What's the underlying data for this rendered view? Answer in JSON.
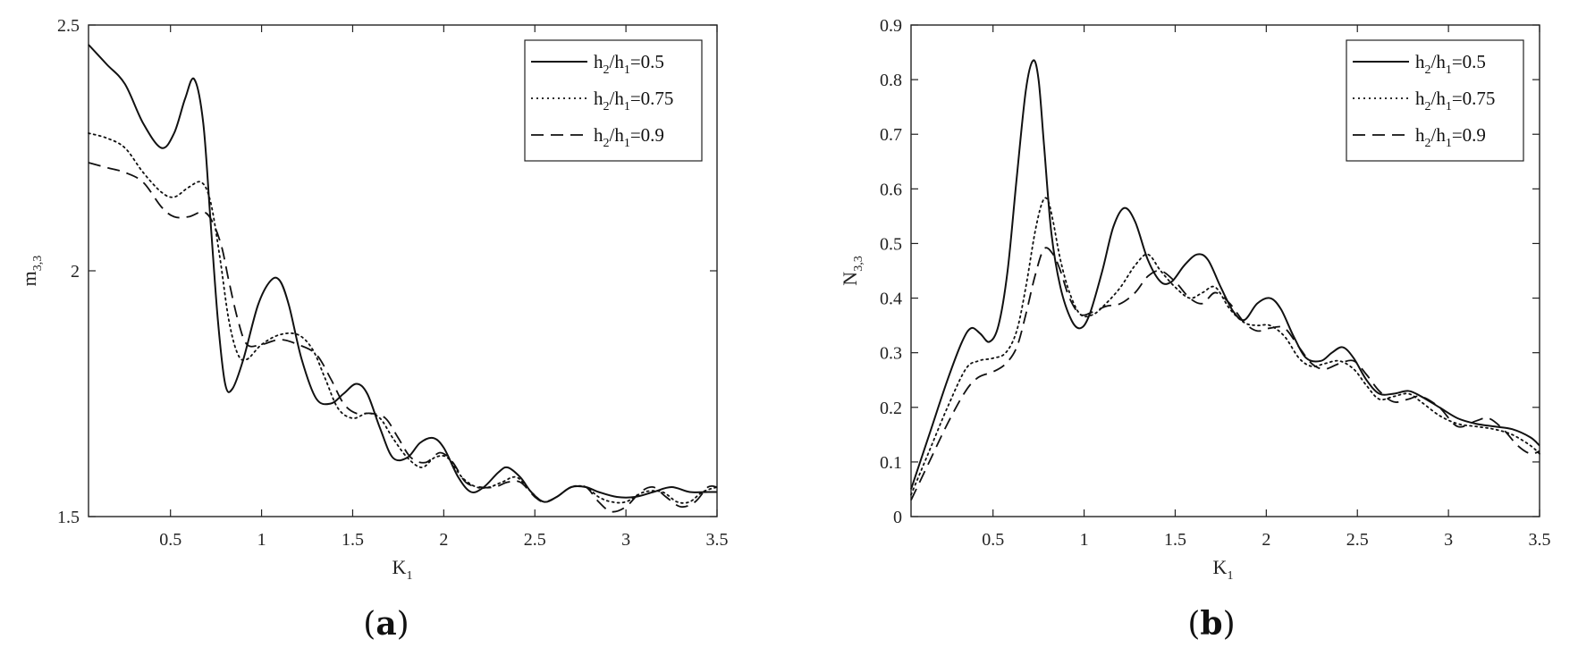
{
  "chart_data": [
    {
      "type": "line",
      "panel_label": "a",
      "ylabel": "m",
      "ylabel_sub": "3,3",
      "xlabel": "K",
      "xlabel_sub": "1",
      "xlim": [
        0.05,
        3.5
      ],
      "ylim": [
        1.5,
        2.5
      ],
      "xticks": [
        0.5,
        1,
        1.5,
        2,
        2.5,
        3,
        3.5
      ],
      "xtick_labels": [
        "0.5",
        "1",
        "1.5",
        "2",
        "2.5",
        "3",
        "3.5"
      ],
      "yticks": [
        1.5,
        2,
        2.5
      ],
      "ytick_labels": [
        "1.5",
        "2",
        "2.5"
      ],
      "grid": false,
      "legend_position": "top-right",
      "series": [
        {
          "legend_prefix": "h",
          "legend_sub1": "2",
          "legend_mid": "/h",
          "legend_sub2": "1",
          "legend_value": "=0.5",
          "style": "solid",
          "x": [
            0.05,
            0.15,
            0.25,
            0.35,
            0.45,
            0.52,
            0.58,
            0.63,
            0.68,
            0.72,
            0.76,
            0.8,
            0.84,
            0.9,
            0.98,
            1.05,
            1.1,
            1.15,
            1.22,
            1.3,
            1.38,
            1.45,
            1.52,
            1.58,
            1.65,
            1.72,
            1.8,
            1.87,
            1.94,
            2.0,
            2.08,
            2.15,
            2.22,
            2.3,
            2.35,
            2.42,
            2.48,
            2.55,
            2.62,
            2.7,
            2.78,
            2.85,
            2.95,
            3.05,
            3.15,
            3.25,
            3.35,
            3.45,
            3.5
          ],
          "y": [
            2.46,
            2.42,
            2.38,
            2.3,
            2.25,
            2.28,
            2.35,
            2.39,
            2.3,
            2.1,
            1.9,
            1.77,
            1.76,
            1.82,
            1.93,
            1.98,
            1.98,
            1.93,
            1.82,
            1.74,
            1.73,
            1.75,
            1.77,
            1.75,
            1.68,
            1.62,
            1.62,
            1.65,
            1.66,
            1.64,
            1.58,
            1.55,
            1.56,
            1.59,
            1.6,
            1.58,
            1.55,
            1.53,
            1.54,
            1.56,
            1.56,
            1.55,
            1.54,
            1.54,
            1.55,
            1.56,
            1.55,
            1.55,
            1.55
          ]
        },
        {
          "legend_prefix": "h",
          "legend_sub1": "2",
          "legend_mid": "/h",
          "legend_sub2": "1",
          "legend_value": "=0.75",
          "style": "dotted",
          "x": [
            0.05,
            0.15,
            0.25,
            0.35,
            0.45,
            0.52,
            0.6,
            0.67,
            0.72,
            0.77,
            0.82,
            0.87,
            0.92,
            1.0,
            1.1,
            1.2,
            1.28,
            1.35,
            1.42,
            1.5,
            1.58,
            1.65,
            1.72,
            1.8,
            1.88,
            1.95,
            2.02,
            2.1,
            2.18,
            2.25,
            2.32,
            2.4,
            2.48,
            2.55,
            2.62,
            2.7,
            2.78,
            2.85,
            2.92,
            3.0,
            3.1,
            3.2,
            3.28,
            3.35,
            3.42,
            3.5
          ],
          "y": [
            2.28,
            2.27,
            2.25,
            2.2,
            2.16,
            2.15,
            2.17,
            2.18,
            2.14,
            2.03,
            1.9,
            1.83,
            1.82,
            1.85,
            1.87,
            1.87,
            1.84,
            1.78,
            1.72,
            1.7,
            1.71,
            1.7,
            1.66,
            1.62,
            1.6,
            1.62,
            1.62,
            1.58,
            1.56,
            1.56,
            1.57,
            1.58,
            1.55,
            1.53,
            1.54,
            1.56,
            1.56,
            1.54,
            1.53,
            1.53,
            1.55,
            1.55,
            1.53,
            1.53,
            1.55,
            1.56
          ]
        },
        {
          "legend_prefix": "h",
          "legend_sub1": "2",
          "legend_mid": "/h",
          "legend_sub2": "1",
          "legend_value": "=0.9",
          "style": "dashed",
          "x": [
            0.05,
            0.15,
            0.25,
            0.35,
            0.45,
            0.52,
            0.6,
            0.68,
            0.73,
            0.78,
            0.82,
            0.87,
            0.92,
            1.0,
            1.1,
            1.2,
            1.3,
            1.38,
            1.45,
            1.52,
            1.6,
            1.68,
            1.75,
            1.82,
            1.9,
            1.98,
            2.05,
            2.12,
            2.2,
            2.28,
            2.35,
            2.42,
            2.5,
            2.55,
            2.62,
            2.7,
            2.78,
            2.85,
            2.92,
            3.0,
            3.08,
            3.15,
            3.22,
            3.3,
            3.38,
            3.45,
            3.5
          ],
          "y": [
            2.22,
            2.21,
            2.2,
            2.18,
            2.13,
            2.11,
            2.11,
            2.12,
            2.1,
            2.05,
            1.98,
            1.9,
            1.85,
            1.85,
            1.86,
            1.85,
            1.83,
            1.78,
            1.73,
            1.71,
            1.71,
            1.7,
            1.66,
            1.62,
            1.61,
            1.63,
            1.61,
            1.57,
            1.56,
            1.56,
            1.57,
            1.57,
            1.54,
            1.53,
            1.54,
            1.56,
            1.56,
            1.53,
            1.51,
            1.52,
            1.55,
            1.56,
            1.54,
            1.52,
            1.53,
            1.56,
            1.56
          ]
        }
      ]
    },
    {
      "type": "line",
      "panel_label": "b",
      "ylabel": "N",
      "ylabel_sub": "3,3",
      "xlabel": "K",
      "xlabel_sub": "1",
      "xlim": [
        0.05,
        3.5
      ],
      "ylim": [
        0,
        0.9
      ],
      "xticks": [
        0.5,
        1,
        1.5,
        2,
        2.5,
        3,
        3.5
      ],
      "xtick_labels": [
        "0.5",
        "1",
        "1.5",
        "2",
        "2.5",
        "3",
        "3.5"
      ],
      "yticks": [
        0,
        0.1,
        0.2,
        0.3,
        0.4,
        0.5,
        0.6,
        0.7,
        0.8,
        0.9
      ],
      "ytick_labels": [
        "0",
        "0.1",
        "0.2",
        "0.3",
        "0.4",
        "0.5",
        "0.6",
        "0.7",
        "0.8",
        "0.9"
      ],
      "grid": false,
      "legend_position": "top-right",
      "series": [
        {
          "legend_prefix": "h",
          "legend_sub1": "2",
          "legend_mid": "/h",
          "legend_sub2": "1",
          "legend_value": "=0.5",
          "style": "solid",
          "x": [
            0.05,
            0.15,
            0.25,
            0.33,
            0.38,
            0.43,
            0.48,
            0.53,
            0.58,
            0.63,
            0.68,
            0.72,
            0.75,
            0.78,
            0.82,
            0.87,
            0.93,
            0.98,
            1.03,
            1.1,
            1.16,
            1.22,
            1.28,
            1.35,
            1.42,
            1.48,
            1.55,
            1.62,
            1.68,
            1.75,
            1.82,
            1.88,
            1.95,
            2.02,
            2.08,
            2.15,
            2.22,
            2.3,
            2.36,
            2.42,
            2.48,
            2.55,
            2.62,
            2.7,
            2.78,
            2.85,
            2.95,
            3.05,
            3.15,
            3.25,
            3.35,
            3.45,
            3.5
          ],
          "y": [
            0.05,
            0.15,
            0.25,
            0.32,
            0.345,
            0.335,
            0.32,
            0.35,
            0.45,
            0.62,
            0.78,
            0.835,
            0.8,
            0.68,
            0.52,
            0.42,
            0.36,
            0.345,
            0.37,
            0.45,
            0.53,
            0.565,
            0.54,
            0.47,
            0.43,
            0.43,
            0.46,
            0.48,
            0.47,
            0.42,
            0.375,
            0.36,
            0.39,
            0.4,
            0.38,
            0.33,
            0.29,
            0.285,
            0.3,
            0.31,
            0.29,
            0.25,
            0.225,
            0.225,
            0.23,
            0.22,
            0.2,
            0.18,
            0.17,
            0.165,
            0.16,
            0.145,
            0.13
          ]
        },
        {
          "legend_prefix": "h",
          "legend_sub1": "2",
          "legend_mid": "/h",
          "legend_sub2": "1",
          "legend_value": "=0.75",
          "style": "dotted",
          "x": [
            0.05,
            0.15,
            0.25,
            0.35,
            0.42,
            0.5,
            0.57,
            0.63,
            0.68,
            0.73,
            0.77,
            0.8,
            0.83,
            0.87,
            0.92,
            0.98,
            1.05,
            1.12,
            1.2,
            1.28,
            1.35,
            1.42,
            1.5,
            1.58,
            1.65,
            1.72,
            1.8,
            1.88,
            1.95,
            2.02,
            2.1,
            2.18,
            2.25,
            2.32,
            2.4,
            2.48,
            2.55,
            2.62,
            2.7,
            2.78,
            2.85,
            2.95,
            3.05,
            3.15,
            3.25,
            3.35,
            3.45,
            3.5
          ],
          "y": [
            0.04,
            0.12,
            0.2,
            0.27,
            0.285,
            0.29,
            0.3,
            0.34,
            0.42,
            0.52,
            0.575,
            0.58,
            0.54,
            0.47,
            0.41,
            0.37,
            0.37,
            0.39,
            0.42,
            0.46,
            0.48,
            0.45,
            0.42,
            0.4,
            0.41,
            0.42,
            0.38,
            0.355,
            0.35,
            0.35,
            0.33,
            0.29,
            0.275,
            0.28,
            0.285,
            0.27,
            0.24,
            0.215,
            0.22,
            0.225,
            0.21,
            0.185,
            0.17,
            0.165,
            0.16,
            0.15,
            0.13,
            0.115
          ]
        },
        {
          "legend_prefix": "h",
          "legend_sub1": "2",
          "legend_mid": "/h",
          "legend_sub2": "1",
          "legend_value": "=0.9",
          "style": "dashed",
          "x": [
            0.05,
            0.15,
            0.25,
            0.35,
            0.42,
            0.5,
            0.57,
            0.63,
            0.68,
            0.73,
            0.78,
            0.83,
            0.87,
            0.92,
            0.98,
            1.05,
            1.12,
            1.2,
            1.28,
            1.35,
            1.42,
            1.5,
            1.58,
            1.65,
            1.72,
            1.8,
            1.88,
            1.95,
            2.02,
            2.1,
            2.18,
            2.25,
            2.32,
            2.4,
            2.48,
            2.55,
            2.62,
            2.7,
            2.78,
            2.85,
            2.95,
            3.05,
            3.15,
            3.22,
            3.3,
            3.38,
            3.45,
            3.5
          ],
          "y": [
            0.03,
            0.1,
            0.17,
            0.23,
            0.255,
            0.265,
            0.28,
            0.31,
            0.37,
            0.44,
            0.49,
            0.48,
            0.45,
            0.4,
            0.37,
            0.375,
            0.385,
            0.39,
            0.41,
            0.44,
            0.45,
            0.43,
            0.4,
            0.39,
            0.41,
            0.39,
            0.355,
            0.34,
            0.345,
            0.345,
            0.31,
            0.28,
            0.27,
            0.28,
            0.285,
            0.26,
            0.23,
            0.21,
            0.215,
            0.22,
            0.2,
            0.165,
            0.175,
            0.18,
            0.16,
            0.13,
            0.115,
            0.12
          ]
        }
      ]
    }
  ]
}
